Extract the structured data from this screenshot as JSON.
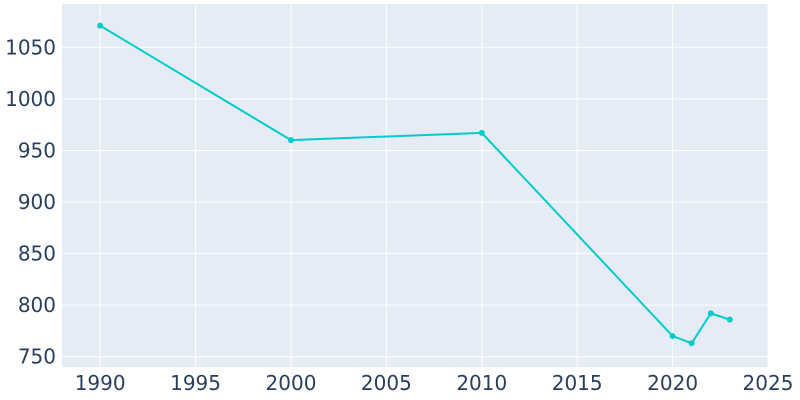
{
  "chart_data": {
    "type": "line",
    "title": "",
    "xlabel": "",
    "ylabel": "",
    "xlim": [
      1988,
      2025
    ],
    "ylim": [
      740,
      1092
    ],
    "x_ticks": [
      1990,
      1995,
      2000,
      2005,
      2010,
      2015,
      2020,
      2025
    ],
    "y_ticks": [
      750,
      800,
      850,
      900,
      950,
      1000,
      1050
    ],
    "grid": true,
    "line_color": "#00cccc",
    "plot_background": "#e5ecf6",
    "grid_color": "#ffffff",
    "tick_color": "#2a3f5f",
    "series": [
      {
        "x": [
          1990,
          2000,
          2010,
          2020,
          2021,
          2022,
          2023
        ],
        "y": [
          1071,
          960,
          967,
          770,
          763,
          792,
          786
        ]
      }
    ]
  }
}
